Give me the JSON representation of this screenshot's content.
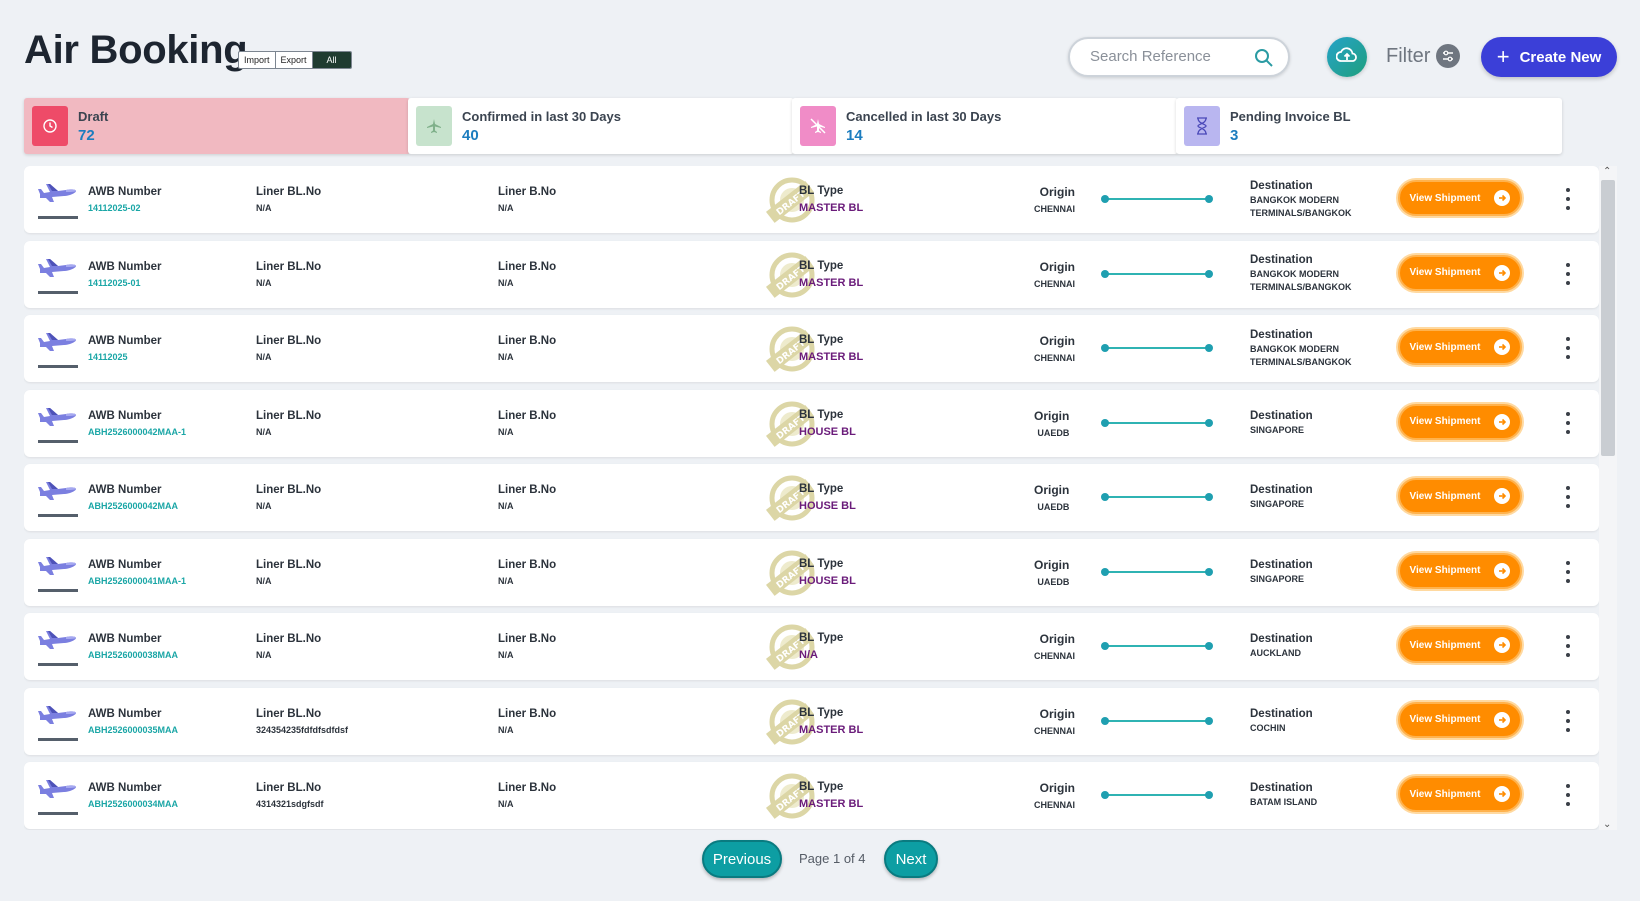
{
  "header": {
    "title": "Air Booking",
    "toggle": [
      "Import",
      "Export",
      "All"
    ],
    "search_placeholder": "Search Reference",
    "filter_label": "Filter",
    "create_label": "Create New"
  },
  "cards": [
    {
      "label": "Draft",
      "value": "72",
      "icon": "clock-icon",
      "color": "#ee4b68"
    },
    {
      "label": "Confirmed in last 30 Days",
      "value": "40",
      "icon": "plane-icon",
      "color": "#c7e3cd"
    },
    {
      "label": "Cancelled in last 30 Days",
      "value": "14",
      "icon": "plane-cancel-icon",
      "color": "#f08cc7"
    },
    {
      "label": "Pending Invoice BL",
      "value": "3",
      "icon": "hourglass-icon",
      "color": "#b9b6f0"
    }
  ],
  "labels": {
    "awb": "AWB Number",
    "liner_bl": "Liner BL.No",
    "liner_b": "Liner B.No",
    "bl_type": "BL Type",
    "origin": "Origin",
    "destination": "Destination",
    "view": "View Shipment",
    "stamp": "DRAFT"
  },
  "rows": [
    {
      "awb": "14112025-02",
      "liner_bl": "N/A",
      "liner_b": "N/A",
      "bl_type": "MASTER BL",
      "origin": "CHENNAI",
      "dest": "BANGKOK MODERN TERMINALS/BANGKOK"
    },
    {
      "awb": "14112025-01",
      "liner_bl": "N/A",
      "liner_b": "N/A",
      "bl_type": "MASTER BL",
      "origin": "CHENNAI",
      "dest": "BANGKOK MODERN TERMINALS/BANGKOK"
    },
    {
      "awb": "14112025",
      "liner_bl": "N/A",
      "liner_b": "N/A",
      "bl_type": "MASTER BL",
      "origin": "CHENNAI",
      "dest": "BANGKOK MODERN TERMINALS/BANGKOK"
    },
    {
      "awb": "ABH2526000042MAA-1",
      "liner_bl": "N/A",
      "liner_b": "N/A",
      "bl_type": "HOUSE BL",
      "origin": "UAEDB",
      "dest": "SINGAPORE"
    },
    {
      "awb": "ABH2526000042MAA",
      "liner_bl": "N/A",
      "liner_b": "N/A",
      "bl_type": "HOUSE BL",
      "origin": "UAEDB",
      "dest": "SINGAPORE"
    },
    {
      "awb": "ABH2526000041MAA-1",
      "liner_bl": "N/A",
      "liner_b": "N/A",
      "bl_type": "HOUSE BL",
      "origin": "UAEDB",
      "dest": "SINGAPORE"
    },
    {
      "awb": "ABH2526000038MAA",
      "liner_bl": "N/A",
      "liner_b": "N/A",
      "bl_type": "N/A",
      "origin": "CHENNAI",
      "dest": "AUCKLAND"
    },
    {
      "awb": "ABH2526000035MAA",
      "liner_bl": "324354235fdfdfsdfdsf",
      "liner_b": "N/A",
      "bl_type": "MASTER BL",
      "origin": "CHENNAI",
      "dest": "COCHIN"
    },
    {
      "awb": "ABH2526000034MAA",
      "liner_bl": "4314321sdgfsdf",
      "liner_b": "N/A",
      "bl_type": "MASTER BL",
      "origin": "CHENNAI",
      "dest": "BATAM ISLAND"
    }
  ],
  "pagination": {
    "prev": "Previous",
    "info": "Page 1 of 4",
    "next": "Next"
  }
}
